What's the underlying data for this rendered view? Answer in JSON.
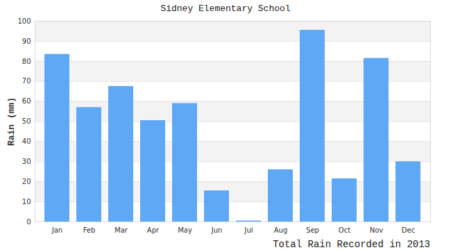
{
  "chart_data": {
    "type": "bar",
    "title": "Sidney Elementary School",
    "caption": "Total Rain Recorded in 2013",
    "y_label": "Rain (mm)",
    "categories": [
      "Jan",
      "Feb",
      "Mar",
      "Apr",
      "May",
      "Jun",
      "Jul",
      "Aug",
      "Sep",
      "Oct",
      "Nov",
      "Dec"
    ],
    "values": [
      83.5,
      57,
      67.5,
      50.5,
      59,
      15.5,
      0.5,
      26,
      95.5,
      21.5,
      81.5,
      30
    ],
    "color": "#5fa8f5",
    "ylim": [
      0,
      100
    ],
    "yticks": [
      0,
      10,
      20,
      30,
      40,
      50,
      60,
      70,
      80,
      90,
      100
    ],
    "grid": true
  }
}
